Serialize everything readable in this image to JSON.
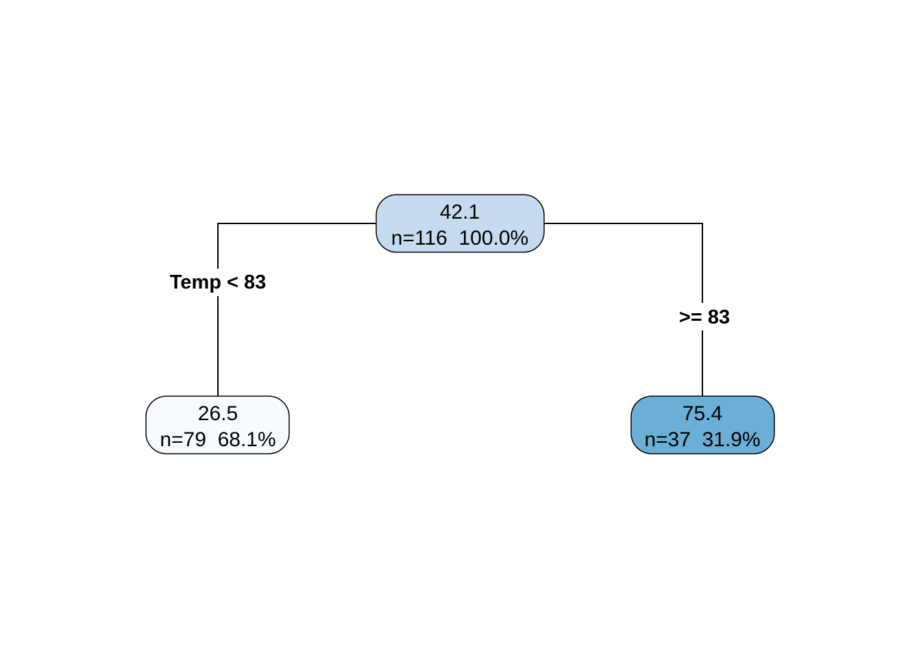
{
  "tree": {
    "nodes": [
      {
        "id": "root",
        "value": "42.1",
        "stats": "n=116  100.0%",
        "fill": "#c6dbef"
      },
      {
        "id": "left",
        "value": "26.5",
        "stats": "n=79  68.1%",
        "fill": "#f7fbff"
      },
      {
        "id": "right",
        "value": "75.4",
        "stats": "n=37  31.9%",
        "fill": "#6baed6"
      }
    ],
    "splits": {
      "left_label": "Temp < 83",
      "right_label": ">= 83"
    }
  }
}
